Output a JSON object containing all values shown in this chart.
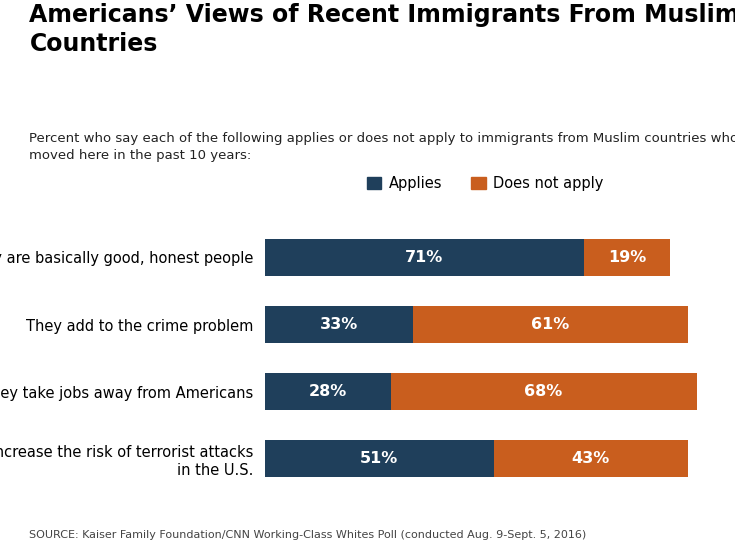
{
  "title": "Americans’ Views of Recent Immigrants From Muslim\nCountries",
  "subtitle": "Percent who say each of the following applies or does not apply to immigrants from Muslim countries who have\nmoved here in the past 10 years:",
  "categories": [
    "They are basically good, honest people",
    "They add to the crime problem",
    "They take jobs away from Americans",
    "They increase the risk of terrorist attacks\nin the U.S."
  ],
  "applies": [
    71,
    33,
    28,
    51
  ],
  "does_not_apply": [
    19,
    61,
    68,
    43
  ],
  "color_applies": "#1f3f5b",
  "color_does_not_apply": "#c95e1e",
  "legend_labels": [
    "Applies",
    "Does not apply"
  ],
  "source_text": "SOURCE: Kaiser Family Foundation/CNN Working-Class Whites Poll (conducted Aug. 9-Sept. 5, 2016)",
  "background_color": "#ffffff",
  "bar_height": 0.55,
  "title_fontsize": 17,
  "subtitle_fontsize": 9.5,
  "label_fontsize": 10.5,
  "bar_label_fontsize": 11.5,
  "source_fontsize": 8,
  "legend_fontsize": 10.5
}
